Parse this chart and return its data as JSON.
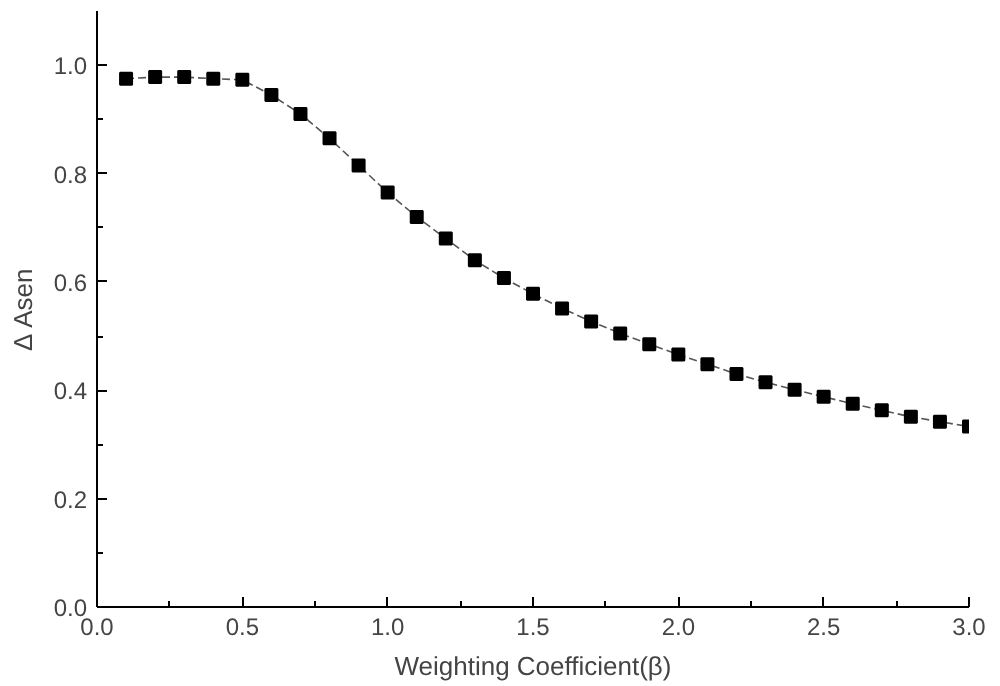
{
  "chart_data": {
    "type": "line",
    "xlabel": "Weighting Coefficient(β)",
    "ylabel": "Δ Asen",
    "x": [
      0.1,
      0.2,
      0.3,
      0.4,
      0.5,
      0.6,
      0.7,
      0.8,
      0.9,
      1.0,
      1.1,
      1.2,
      1.3,
      1.4,
      1.5,
      1.6,
      1.7,
      1.8,
      1.9,
      2.0,
      2.1,
      2.2,
      2.3,
      2.4,
      2.5,
      2.6,
      2.7,
      2.8,
      2.9,
      3.0
    ],
    "series": [
      {
        "color": "#000000",
        "values": [
          0.975,
          0.978,
          0.978,
          0.975,
          0.973,
          0.945,
          0.91,
          0.865,
          0.815,
          0.765,
          0.72,
          0.68,
          0.64,
          0.607,
          0.578,
          0.551,
          0.527,
          0.505,
          0.485,
          0.466,
          0.448,
          0.43,
          0.415,
          0.401,
          0.388,
          0.375,
          0.363,
          0.351,
          0.342,
          0.333
        ]
      }
    ],
    "xlim": [
      0,
      3.0
    ],
    "ylim": [
      0,
      1.1
    ],
    "xticks": [
      {
        "value": 0,
        "label": "0.0"
      },
      0.5,
      {
        "value": 1,
        "label": "1.0"
      },
      1.5,
      {
        "value": 2,
        "label": "2.0"
      },
      2.5,
      {
        "value": 3,
        "label": "3.0"
      }
    ],
    "yticks": [
      {
        "value": 0,
        "label": "0.0"
      },
      0.2,
      0.4,
      0.6,
      0.8,
      {
        "value": 1,
        "label": "1.0"
      }
    ],
    "marker": "square",
    "line_style": "dashed",
    "grid": false
  }
}
